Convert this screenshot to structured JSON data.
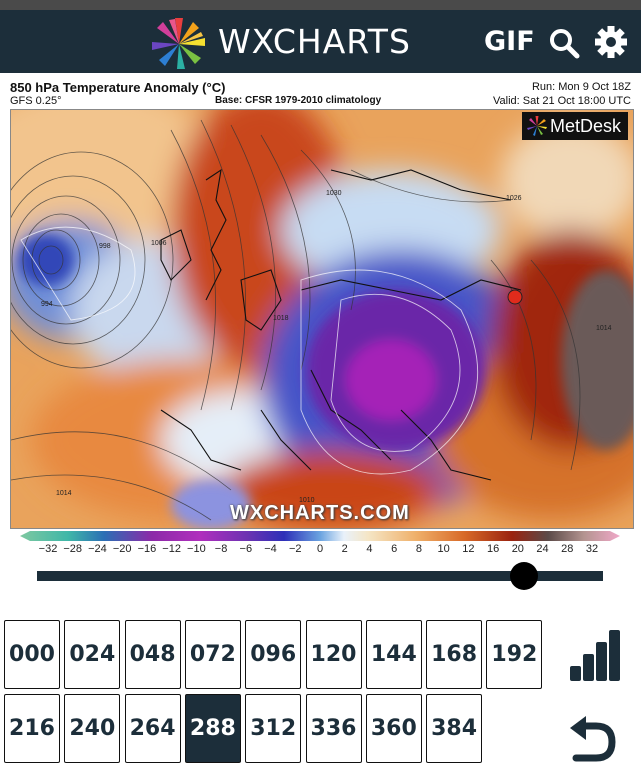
{
  "header": {
    "brand": "WXCHARTS",
    "gif_label": "GIF",
    "icons": [
      "logo-icon",
      "search-icon",
      "gear-icon"
    ]
  },
  "chart": {
    "title": "850 hPa Temperature Anomaly (°C)",
    "model": "GFS 0.25°",
    "base": "Base: CFSR 1979-2010 climatology",
    "run": "Run: Mon 9 Oct 18Z",
    "valid": "Valid: Sat 21 Oct 18:00 UTC",
    "provider": "MetDesk",
    "watermark": "WXCHARTS.COM",
    "scale_labels": [
      "−32",
      "−28",
      "−24",
      "−20",
      "−16",
      "−12",
      "−10",
      "−8",
      "−6",
      "−4",
      "−2",
      "0",
      "2",
      "4",
      "6",
      "8",
      "10",
      "12",
      "16",
      "20",
      "24",
      "28",
      "32"
    ]
  },
  "timeline": {
    "steps": [
      "000",
      "024",
      "048",
      "072",
      "096",
      "120",
      "144",
      "168",
      "192",
      "216",
      "240",
      "264",
      "288",
      "312",
      "336",
      "360",
      "384"
    ],
    "selected": "288",
    "slider_position": 0.86
  },
  "controls": {
    "icons": [
      "bar-chart-icon",
      "back-arrow-icon"
    ]
  }
}
